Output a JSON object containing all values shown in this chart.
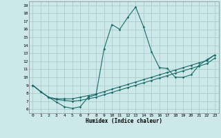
{
  "xlabel": "Humidex (Indice chaleur)",
  "background_color": "#cce8e8",
  "grid_color": "#aacccc",
  "line_color": "#1a6b6b",
  "xlim": [
    -0.5,
    23.5
  ],
  "ylim": [
    5.5,
    19.5
  ],
  "xticks": [
    0,
    1,
    2,
    3,
    4,
    5,
    6,
    7,
    8,
    9,
    10,
    11,
    12,
    13,
    14,
    15,
    16,
    17,
    18,
    19,
    20,
    21,
    22,
    23
  ],
  "yticks": [
    6,
    7,
    8,
    9,
    10,
    11,
    12,
    13,
    14,
    15,
    16,
    17,
    18,
    19
  ],
  "line1_x": [
    0,
    1,
    2,
    3,
    4,
    5,
    6,
    7,
    8,
    9,
    10,
    11,
    12,
    13,
    14,
    15,
    16,
    17,
    18,
    19,
    20,
    21,
    22,
    23
  ],
  "line1_y": [
    9.0,
    8.2,
    7.5,
    6.9,
    6.3,
    6.1,
    6.3,
    7.5,
    7.8,
    13.5,
    16.6,
    16.0,
    17.5,
    18.8,
    16.3,
    13.2,
    11.2,
    11.1,
    10.0,
    10.0,
    10.3,
    11.5,
    12.2,
    12.8
  ],
  "line2_x": [
    0,
    1,
    2,
    3,
    4,
    5,
    6,
    7,
    8,
    9,
    10,
    11,
    12,
    13,
    14,
    15,
    16,
    17,
    18,
    19,
    20,
    21,
    22,
    23
  ],
  "line2_y": [
    9.0,
    8.2,
    7.5,
    7.3,
    7.3,
    7.3,
    7.5,
    7.7,
    7.9,
    8.2,
    8.5,
    8.8,
    9.1,
    9.4,
    9.7,
    10.0,
    10.3,
    10.6,
    10.9,
    11.2,
    11.5,
    11.8,
    12.1,
    12.8
  ],
  "line3_x": [
    0,
    1,
    2,
    3,
    4,
    5,
    6,
    7,
    8,
    9,
    10,
    11,
    12,
    13,
    14,
    15,
    16,
    17,
    18,
    19,
    20,
    21,
    22,
    23
  ],
  "line3_y": [
    9.0,
    8.2,
    7.5,
    7.2,
    7.1,
    7.0,
    7.1,
    7.3,
    7.5,
    7.8,
    8.1,
    8.4,
    8.7,
    9.0,
    9.3,
    9.6,
    9.9,
    10.2,
    10.5,
    10.8,
    11.1,
    11.4,
    11.7,
    12.4
  ]
}
